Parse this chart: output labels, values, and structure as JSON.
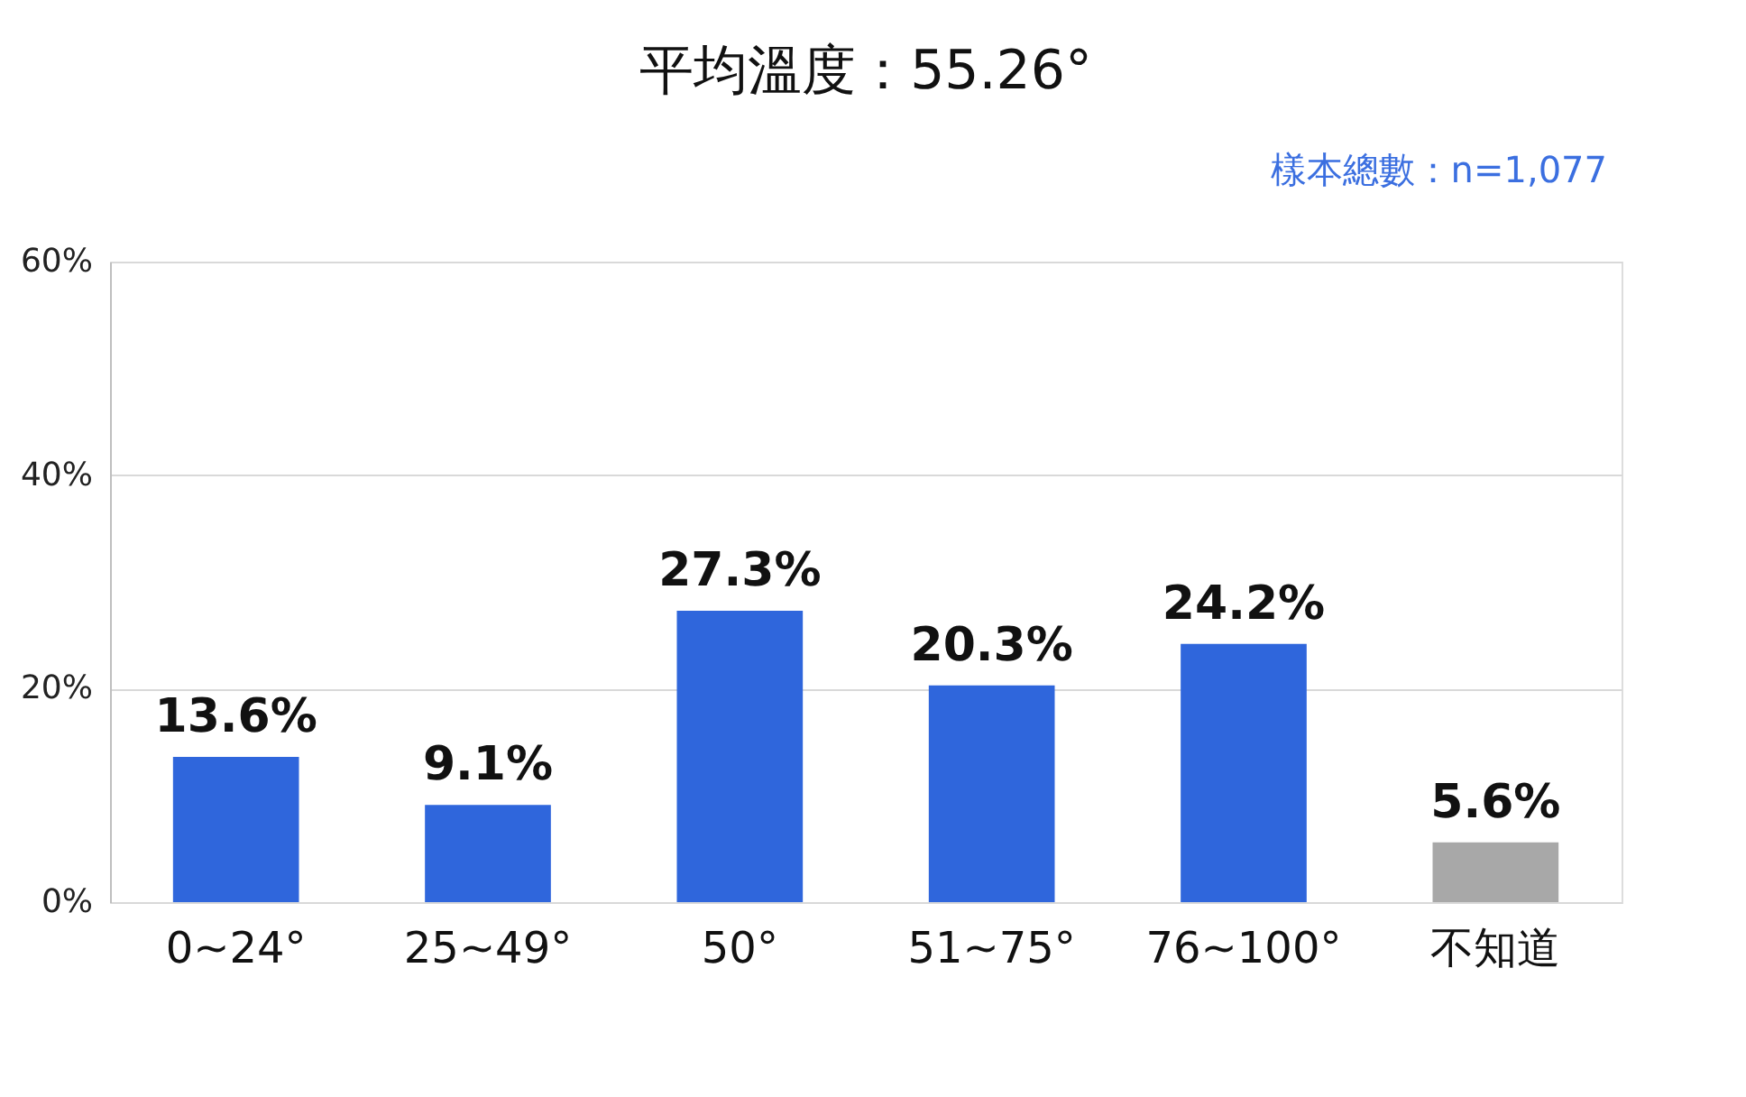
{
  "chart_data": {
    "type": "bar",
    "title": "平均溫度：55.26°",
    "categories": [
      "0~24°",
      "25~49°",
      "50°",
      "51~75°",
      "76~100°",
      "不知道"
    ],
    "values": [
      13.6,
      9.1,
      27.3,
      20.3,
      24.2,
      5.6
    ],
    "colors": [
      "#2f66dc",
      "#2f66dc",
      "#2f66dc",
      "#2f66dc",
      "#2f66dc",
      "#a8a8a8"
    ],
    "value_labels": [
      "13.6%",
      "9.1%",
      "27.3%",
      "20.3%",
      "24.2%",
      "5.6%"
    ],
    "ylim": [
      0,
      60
    ],
    "yticks": [
      {
        "value": 0,
        "label": "0%"
      },
      {
        "value": 20,
        "label": "20%"
      },
      {
        "value": 40,
        "label": "40%"
      },
      {
        "value": 60,
        "label": "60%"
      }
    ],
    "grid": "y",
    "annotations": [
      "樣本總數：n=1,077"
    ]
  }
}
